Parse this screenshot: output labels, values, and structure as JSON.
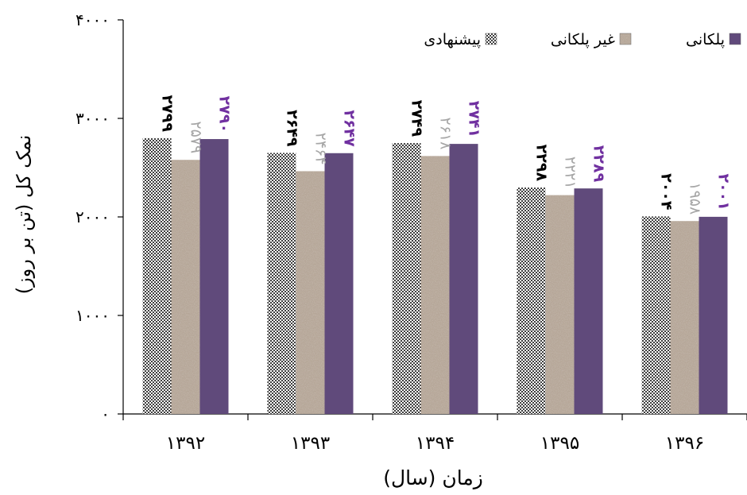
{
  "chart_data": {
    "type": "bar",
    "title": "",
    "xlabel": "زمان (سال)",
    "ylabel": "نمک کل (تن بر روز)",
    "categories": [
      "۱۳۹۲",
      "۱۳۹۳",
      "۱۳۹۴",
      "۱۳۹۵",
      "۱۳۹۶"
    ],
    "ylim": [
      0,
      4000
    ],
    "yticks": [
      0,
      1000,
      2000,
      3000,
      4000
    ],
    "ytick_labels": [
      "۰",
      "۱۰۰۰",
      "۲۰۰۰",
      "۳۰۰۰",
      "۴۰۰۰"
    ],
    "grid": false,
    "legend_position": "top-right",
    "series": [
      {
        "name": "پیشنهادی",
        "values": [
          2799,
          2649,
          2749,
          2298,
          2004
        ],
        "value_labels": [
          "۲۷۹۹",
          "۲۶۴۹",
          "۲۷۴۹",
          "۲۲۹۸",
          "۲۰۰۴"
        ],
        "fill": "dots",
        "label_color": "#000000"
      },
      {
        "name": "غیر پلکانی",
        "values": [
          2579,
          2464,
          2618,
          2221,
          1958
        ],
        "value_labels": [
          "۲۵۷۹",
          "۲۴۶۴",
          "۲۶۱۸",
          "۲۲۲۱",
          "۱۹۵۸"
        ],
        "fill": "granite",
        "label_color": "#a6a6a6"
      },
      {
        "name": "پلکانی",
        "values": [
          2790,
          2647,
          2741,
          2289,
          2001
        ],
        "value_labels": [
          "۲۷۹۰",
          "۲۶۴۷",
          "۲۷۴۱",
          "۲۲۸۹",
          "۲۰۰۱"
        ],
        "fill": "solid",
        "color": "#604a7b",
        "label_color": "#7030a0"
      }
    ]
  }
}
